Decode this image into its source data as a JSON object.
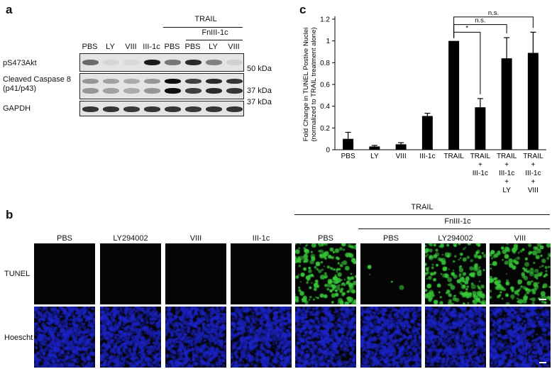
{
  "panel_a": {
    "letter": "a",
    "trail_label": "TRAIL",
    "fniii_label": "FnIII-1c",
    "lanes": [
      "PBS",
      "LY",
      "VIII",
      "III-1c",
      "PBS",
      "PBS",
      "LY",
      "VIII"
    ],
    "blots": [
      {
        "label": "pS473Akt",
        "marker": "50 kDa",
        "intensity": [
          0.55,
          0.05,
          0.04,
          0.92,
          0.5,
          0.85,
          0.45,
          0.08
        ]
      },
      {
        "label": "Cleaved Caspase 8\n(p41/p43)",
        "marker": "37 kDa",
        "intensity": [
          0.35,
          0.3,
          0.25,
          0.35,
          0.98,
          0.75,
          0.85,
          0.8
        ]
      },
      {
        "label": "GAPDH",
        "marker": "37 kDa",
        "intensity": [
          0.8,
          0.8,
          0.78,
          0.8,
          0.8,
          0.78,
          0.8,
          0.8
        ]
      }
    ]
  },
  "panel_b": {
    "letter": "b",
    "trail_label": "TRAIL",
    "fniii_label": "FnIII-1c",
    "columns": [
      "PBS",
      "LY294002",
      "VIII",
      "III-1c",
      "PBS",
      "PBS",
      "LY294002",
      "VIII"
    ],
    "rows": [
      "TUNEL",
      "Hoescht"
    ],
    "tunel_signal": [
      0.0,
      0.0,
      0.0,
      0.0,
      0.85,
      0.02,
      0.8,
      0.7
    ],
    "colors": {
      "tunel": "#39c83a",
      "hoechst": "#1c24c8",
      "background": "#050505"
    }
  },
  "panel_c": {
    "letter": "c",
    "chart_data": {
      "type": "bar",
      "categories": [
        "PBS",
        "LY",
        "VIII",
        "III-1c",
        "TRAIL",
        "TRAIL\n+\nIII-1c",
        "TRAIL\n+\nIII-1c\n+\nLY",
        "TRAIL\n+\nIII-1c\n+\nVIII"
      ],
      "values": [
        0.1,
        0.03,
        0.05,
        0.31,
        1.0,
        0.39,
        0.84,
        0.89
      ],
      "errors": [
        0.06,
        0.01,
        0.015,
        0.025,
        0.0,
        0.08,
        0.19,
        0.19
      ],
      "ylabel": "Fold Change in TUNEL Postive Nuclei\n(normalized to TRAIL treatment alone)",
      "ylim": [
        0,
        1.2
      ],
      "yticks": [
        "0",
        "0.2",
        "0.4",
        "0.6",
        "0.8",
        "1",
        "1.2"
      ],
      "bar_color": "#000000",
      "significance": [
        {
          "from": 4,
          "to": 5,
          "label": "*"
        },
        {
          "from": 4,
          "to": 6,
          "label": "n.s."
        },
        {
          "from": 4,
          "to": 7,
          "label": "n.s."
        }
      ]
    }
  }
}
